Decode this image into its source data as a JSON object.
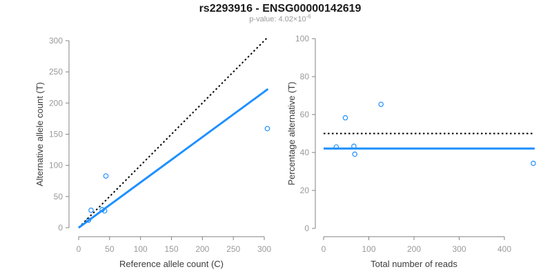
{
  "header": {
    "title": "rs2293916 - ENSG00000142619",
    "pvalue_prefix": "p-value: 4.02×10",
    "pvalue_exponent": "-6"
  },
  "colors": {
    "accent_blue": "#1E90FF",
    "reference_black": "#000000",
    "axis_line": "#828282",
    "tick_label": "#999999",
    "axis_title": "#3b3b3b"
  },
  "chart_data": [
    {
      "type": "scatter",
      "name": "allele-count-scatter",
      "xlabel": "Reference allele count (C)",
      "ylabel": "Alternative allele count (T)",
      "xlim": [
        0,
        310
      ],
      "ylim": [
        0,
        310
      ],
      "xticks": [
        0,
        50,
        100,
        150,
        200,
        250,
        300
      ],
      "yticks": [
        0,
        50,
        100,
        150,
        200,
        250,
        300
      ],
      "grid": false,
      "legend": "none",
      "points": [
        {
          "x": 16,
          "y": 12
        },
        {
          "x": 20,
          "y": 28
        },
        {
          "x": 38,
          "y": 29
        },
        {
          "x": 42,
          "y": 27
        },
        {
          "x": 44,
          "y": 83
        },
        {
          "x": 305,
          "y": 159
        }
      ],
      "lines": [
        {
          "name": "identity-line",
          "style": "dotted",
          "color_key": "reference_black",
          "width": 2,
          "x1": 0,
          "y1": 0,
          "x2": 304,
          "y2": 304
        },
        {
          "name": "fitted-proportion-line",
          "style": "solid",
          "color_key": "accent_blue",
          "width": 3,
          "x1": 0,
          "y1": 0,
          "x2": 306,
          "y2": 222.5
        }
      ]
    },
    {
      "type": "scatter",
      "name": "percentage-alternative-scatter",
      "xlabel": "Total number of reads",
      "ylabel": "Percentage alternative (T)",
      "xlim": [
        0,
        480
      ],
      "ylim": [
        0,
        100
      ],
      "xticks": [
        0,
        100,
        200,
        300,
        400
      ],
      "yticks": [
        0,
        20,
        40,
        60,
        80,
        100
      ],
      "grid": false,
      "legend": "none",
      "points": [
        {
          "x": 28,
          "y": 42.9
        },
        {
          "x": 48,
          "y": 58.3
        },
        {
          "x": 67,
          "y": 43.3
        },
        {
          "x": 69,
          "y": 39.1
        },
        {
          "x": 127,
          "y": 65.4
        },
        {
          "x": 464,
          "y": 34.3
        }
      ],
      "lines": [
        {
          "name": "expected-50pct-line",
          "style": "dotted",
          "color_key": "reference_black",
          "width": 2,
          "x1": 0,
          "y1": 50,
          "x2": 467,
          "y2": 50
        },
        {
          "name": "observed-mean-line",
          "style": "solid",
          "color_key": "accent_blue",
          "width": 3,
          "x1": 0,
          "y1": 42.1,
          "x2": 467,
          "y2": 42.1
        }
      ]
    }
  ]
}
